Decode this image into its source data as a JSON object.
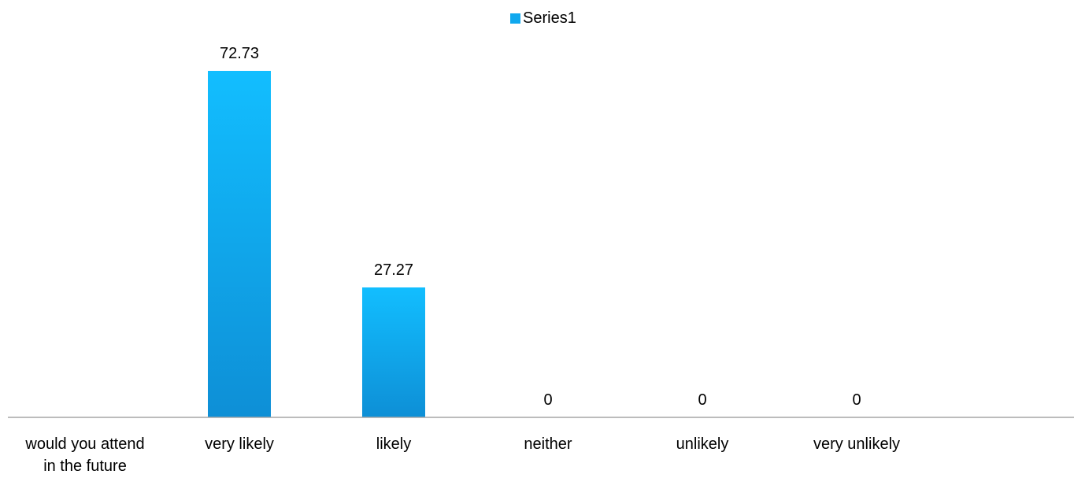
{
  "chart_data": {
    "type": "bar",
    "categories": [
      "would you attend in the future",
      "very likely",
      "likely",
      "neither",
      "unlikely",
      "very unlikely"
    ],
    "category_lines": [
      [
        "would you attend",
        "in the future"
      ],
      [
        "very likely"
      ],
      [
        "likely"
      ],
      [
        "neither"
      ],
      [
        "unlikely"
      ],
      [
        "very unlikely"
      ]
    ],
    "series": [
      {
        "name": "Series1",
        "values": [
          null,
          72.73,
          27.27,
          0,
          0,
          0
        ]
      }
    ],
    "value_labels": [
      "",
      "72.73",
      "27.27",
      "0",
      "0",
      "0"
    ],
    "ylim": [
      0,
      80
    ],
    "legend": {
      "position": "top",
      "labels": [
        "Series1"
      ]
    },
    "grid": false,
    "colors": {
      "bar_top": "#12BEFF",
      "bar_bottom": "#0E8FD6",
      "axis": "#A6A6A6",
      "legend_swatch": "#10A8EE"
    }
  }
}
